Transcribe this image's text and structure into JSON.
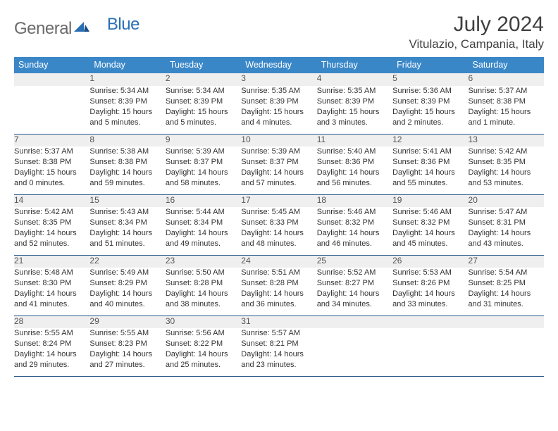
{
  "logo": {
    "word1": "General",
    "word2": "Blue"
  },
  "title": "July 2024",
  "location": "Vitulazio, Campania, Italy",
  "colors": {
    "header_bg": "#3a87c8",
    "header_text": "#ffffff",
    "row_sep": "#2c5a8a",
    "daynum_bg": "#efefef",
    "text": "#333333",
    "logo_gray": "#6a6a6a",
    "logo_blue": "#2a6fb5"
  },
  "weekdays": [
    "Sunday",
    "Monday",
    "Tuesday",
    "Wednesday",
    "Thursday",
    "Friday",
    "Saturday"
  ],
  "weeks": [
    {
      "nums": [
        "",
        "1",
        "2",
        "3",
        "4",
        "5",
        "6"
      ],
      "cells": [
        null,
        {
          "sunrise": "Sunrise: 5:34 AM",
          "sunset": "Sunset: 8:39 PM",
          "day1": "Daylight: 15 hours",
          "day2": "and 5 minutes."
        },
        {
          "sunrise": "Sunrise: 5:34 AM",
          "sunset": "Sunset: 8:39 PM",
          "day1": "Daylight: 15 hours",
          "day2": "and 5 minutes."
        },
        {
          "sunrise": "Sunrise: 5:35 AM",
          "sunset": "Sunset: 8:39 PM",
          "day1": "Daylight: 15 hours",
          "day2": "and 4 minutes."
        },
        {
          "sunrise": "Sunrise: 5:35 AM",
          "sunset": "Sunset: 8:39 PM",
          "day1": "Daylight: 15 hours",
          "day2": "and 3 minutes."
        },
        {
          "sunrise": "Sunrise: 5:36 AM",
          "sunset": "Sunset: 8:39 PM",
          "day1": "Daylight: 15 hours",
          "day2": "and 2 minutes."
        },
        {
          "sunrise": "Sunrise: 5:37 AM",
          "sunset": "Sunset: 8:38 PM",
          "day1": "Daylight: 15 hours",
          "day2": "and 1 minute."
        }
      ]
    },
    {
      "nums": [
        "7",
        "8",
        "9",
        "10",
        "11",
        "12",
        "13"
      ],
      "cells": [
        {
          "sunrise": "Sunrise: 5:37 AM",
          "sunset": "Sunset: 8:38 PM",
          "day1": "Daylight: 15 hours",
          "day2": "and 0 minutes."
        },
        {
          "sunrise": "Sunrise: 5:38 AM",
          "sunset": "Sunset: 8:38 PM",
          "day1": "Daylight: 14 hours",
          "day2": "and 59 minutes."
        },
        {
          "sunrise": "Sunrise: 5:39 AM",
          "sunset": "Sunset: 8:37 PM",
          "day1": "Daylight: 14 hours",
          "day2": "and 58 minutes."
        },
        {
          "sunrise": "Sunrise: 5:39 AM",
          "sunset": "Sunset: 8:37 PM",
          "day1": "Daylight: 14 hours",
          "day2": "and 57 minutes."
        },
        {
          "sunrise": "Sunrise: 5:40 AM",
          "sunset": "Sunset: 8:36 PM",
          "day1": "Daylight: 14 hours",
          "day2": "and 56 minutes."
        },
        {
          "sunrise": "Sunrise: 5:41 AM",
          "sunset": "Sunset: 8:36 PM",
          "day1": "Daylight: 14 hours",
          "day2": "and 55 minutes."
        },
        {
          "sunrise": "Sunrise: 5:42 AM",
          "sunset": "Sunset: 8:35 PM",
          "day1": "Daylight: 14 hours",
          "day2": "and 53 minutes."
        }
      ]
    },
    {
      "nums": [
        "14",
        "15",
        "16",
        "17",
        "18",
        "19",
        "20"
      ],
      "cells": [
        {
          "sunrise": "Sunrise: 5:42 AM",
          "sunset": "Sunset: 8:35 PM",
          "day1": "Daylight: 14 hours",
          "day2": "and 52 minutes."
        },
        {
          "sunrise": "Sunrise: 5:43 AM",
          "sunset": "Sunset: 8:34 PM",
          "day1": "Daylight: 14 hours",
          "day2": "and 51 minutes."
        },
        {
          "sunrise": "Sunrise: 5:44 AM",
          "sunset": "Sunset: 8:34 PM",
          "day1": "Daylight: 14 hours",
          "day2": "and 49 minutes."
        },
        {
          "sunrise": "Sunrise: 5:45 AM",
          "sunset": "Sunset: 8:33 PM",
          "day1": "Daylight: 14 hours",
          "day2": "and 48 minutes."
        },
        {
          "sunrise": "Sunrise: 5:46 AM",
          "sunset": "Sunset: 8:32 PM",
          "day1": "Daylight: 14 hours",
          "day2": "and 46 minutes."
        },
        {
          "sunrise": "Sunrise: 5:46 AM",
          "sunset": "Sunset: 8:32 PM",
          "day1": "Daylight: 14 hours",
          "day2": "and 45 minutes."
        },
        {
          "sunrise": "Sunrise: 5:47 AM",
          "sunset": "Sunset: 8:31 PM",
          "day1": "Daylight: 14 hours",
          "day2": "and 43 minutes."
        }
      ]
    },
    {
      "nums": [
        "21",
        "22",
        "23",
        "24",
        "25",
        "26",
        "27"
      ],
      "cells": [
        {
          "sunrise": "Sunrise: 5:48 AM",
          "sunset": "Sunset: 8:30 PM",
          "day1": "Daylight: 14 hours",
          "day2": "and 41 minutes."
        },
        {
          "sunrise": "Sunrise: 5:49 AM",
          "sunset": "Sunset: 8:29 PM",
          "day1": "Daylight: 14 hours",
          "day2": "and 40 minutes."
        },
        {
          "sunrise": "Sunrise: 5:50 AM",
          "sunset": "Sunset: 8:28 PM",
          "day1": "Daylight: 14 hours",
          "day2": "and 38 minutes."
        },
        {
          "sunrise": "Sunrise: 5:51 AM",
          "sunset": "Sunset: 8:28 PM",
          "day1": "Daylight: 14 hours",
          "day2": "and 36 minutes."
        },
        {
          "sunrise": "Sunrise: 5:52 AM",
          "sunset": "Sunset: 8:27 PM",
          "day1": "Daylight: 14 hours",
          "day2": "and 34 minutes."
        },
        {
          "sunrise": "Sunrise: 5:53 AM",
          "sunset": "Sunset: 8:26 PM",
          "day1": "Daylight: 14 hours",
          "day2": "and 33 minutes."
        },
        {
          "sunrise": "Sunrise: 5:54 AM",
          "sunset": "Sunset: 8:25 PM",
          "day1": "Daylight: 14 hours",
          "day2": "and 31 minutes."
        }
      ]
    },
    {
      "nums": [
        "28",
        "29",
        "30",
        "31",
        "",
        "",
        ""
      ],
      "cells": [
        {
          "sunrise": "Sunrise: 5:55 AM",
          "sunset": "Sunset: 8:24 PM",
          "day1": "Daylight: 14 hours",
          "day2": "and 29 minutes."
        },
        {
          "sunrise": "Sunrise: 5:55 AM",
          "sunset": "Sunset: 8:23 PM",
          "day1": "Daylight: 14 hours",
          "day2": "and 27 minutes."
        },
        {
          "sunrise": "Sunrise: 5:56 AM",
          "sunset": "Sunset: 8:22 PM",
          "day1": "Daylight: 14 hours",
          "day2": "and 25 minutes."
        },
        {
          "sunrise": "Sunrise: 5:57 AM",
          "sunset": "Sunset: 8:21 PM",
          "day1": "Daylight: 14 hours",
          "day2": "and 23 minutes."
        },
        null,
        null,
        null
      ]
    }
  ]
}
